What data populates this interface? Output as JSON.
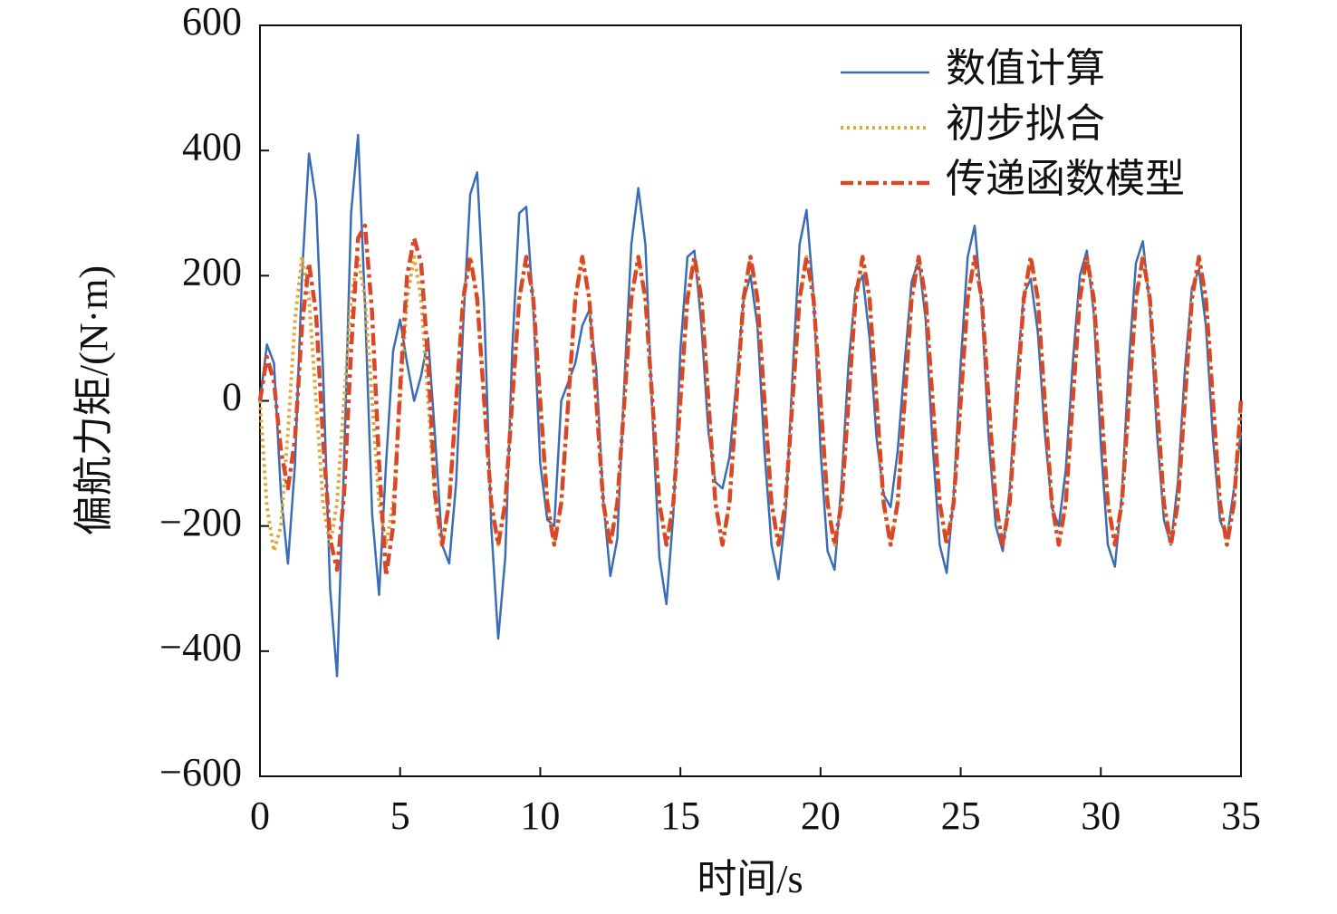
{
  "chart_data": {
    "type": "line",
    "xlabel": "时间/s",
    "ylabel": "偏航力矩/(N·m)",
    "xlim": [
      0,
      35
    ],
    "ylim": [
      -600,
      600
    ],
    "xticks": [
      0,
      5,
      10,
      15,
      20,
      25,
      30,
      35
    ],
    "yticks": [
      {
        "value": -600,
        "label": "−600"
      },
      {
        "value": -400,
        "label": "−400"
      },
      {
        "value": -200,
        "label": "−200"
      },
      0,
      200,
      400,
      600
    ],
    "grid": false,
    "legend": "upper right",
    "x": [
      0,
      0.25,
      0.5,
      0.75,
      1,
      1.25,
      1.5,
      1.75,
      2,
      2.25,
      2.5,
      2.75,
      3,
      3.25,
      3.5,
      3.75,
      4,
      4.25,
      4.5,
      4.75,
      5,
      5.25,
      5.5,
      5.75,
      6,
      6.25,
      6.5,
      6.75,
      7,
      7.25,
      7.5,
      7.75,
      8,
      8.25,
      8.5,
      8.75,
      9,
      9.25,
      9.5,
      9.75,
      10,
      10.25,
      10.5,
      10.75,
      11,
      11.25,
      11.5,
      11.75,
      12,
      12.25,
      12.5,
      12.75,
      13,
      13.25,
      13.5,
      13.75,
      14,
      14.25,
      14.5,
      14.75,
      15,
      15.25,
      15.5,
      15.75,
      16,
      16.25,
      16.5,
      16.75,
      17,
      17.25,
      17.5,
      17.75,
      18,
      18.25,
      18.5,
      18.75,
      19,
      19.25,
      19.5,
      19.75,
      20,
      20.25,
      20.5,
      20.75,
      21,
      21.25,
      21.5,
      21.75,
      22,
      22.25,
      22.5,
      22.75,
      23,
      23.25,
      23.5,
      23.75,
      24,
      24.25,
      24.5,
      24.75,
      25,
      25.25,
      25.5,
      25.75,
      26,
      26.25,
      26.5,
      26.75,
      27,
      27.25,
      27.5,
      27.75,
      28,
      28.25,
      28.5,
      28.75,
      29,
      29.25,
      29.5,
      29.75,
      30,
      30.25,
      30.5,
      30.75,
      31,
      31.25,
      31.5,
      31.75,
      32,
      32.25,
      32.5,
      32.75,
      33,
      33.25,
      33.5,
      33.75,
      34,
      34.25,
      34.5,
      34.75,
      35
    ],
    "series": [
      {
        "name": "数值计算",
        "color": "#3a6db5",
        "line_style": "solid",
        "values": [
          0,
          90,
          60,
          -150,
          -260,
          -100,
          200,
          395,
          320,
          50,
          -300,
          -440,
          -100,
          300,
          425,
          150,
          -180,
          -310,
          -100,
          80,
          130,
          60,
          0,
          40,
          100,
          -60,
          -230,
          -260,
          -130,
          120,
          330,
          365,
          150,
          -200,
          -380,
          -250,
          80,
          300,
          310,
          150,
          -100,
          -190,
          -200,
          0,
          30,
          60,
          120,
          145,
          50,
          -160,
          -280,
          -220,
          30,
          250,
          340,
          250,
          -20,
          -250,
          -325,
          -180,
          80,
          230,
          240,
          120,
          -50,
          -130,
          -140,
          -90,
          30,
          160,
          200,
          120,
          -80,
          -230,
          -285,
          -180,
          40,
          250,
          305,
          170,
          -80,
          -240,
          -270,
          -130,
          60,
          180,
          200,
          100,
          -60,
          -150,
          -170,
          -80,
          60,
          190,
          225,
          130,
          -70,
          -230,
          -275,
          -150,
          60,
          230,
          280,
          150,
          -60,
          -200,
          -240,
          -140,
          40,
          170,
          195,
          110,
          -50,
          -170,
          -200,
          -110,
          60,
          200,
          240,
          140,
          -70,
          -230,
          -265,
          -150,
          60,
          220,
          255,
          150,
          -50,
          -190,
          -230,
          -130,
          50,
          180,
          210,
          120,
          -60,
          -190,
          -220,
          -140,
          -50
        ]
      },
      {
        "name": "初步拟合",
        "color": "#e0a838",
        "line_style": "dotted",
        "values": [
          0,
          -170,
          -240,
          -200,
          -50,
          130,
          230,
          163,
          0,
          -163,
          -230,
          -163,
          0,
          163,
          230,
          163,
          0,
          -163,
          -230,
          -163,
          0,
          163,
          230,
          163,
          0,
          -163,
          -230,
          -163,
          0,
          163,
          230,
          163,
          0,
          -163,
          -230,
          -163,
          0,
          163,
          230,
          163,
          0,
          -163,
          -230,
          -163,
          0,
          163,
          230,
          163,
          0,
          -163,
          -230,
          -163,
          0,
          163,
          230,
          163,
          0,
          -163,
          -230,
          -163,
          0,
          163,
          230,
          163,
          0,
          -163,
          -230,
          -163,
          0,
          163,
          230,
          163,
          0,
          -163,
          -230,
          -163,
          0,
          163,
          230,
          163,
          0,
          -163,
          -230,
          -163,
          0,
          163,
          230,
          163,
          0,
          -163,
          -230,
          -163,
          0,
          163,
          230,
          163,
          0,
          -163,
          -230,
          -163,
          0,
          163,
          230,
          163,
          0,
          -163,
          -230,
          -163,
          0,
          163,
          230,
          163,
          0,
          -163,
          -230,
          -163,
          0,
          163,
          230,
          163,
          0,
          -163,
          -230,
          -163,
          0,
          163,
          230,
          163,
          0,
          -163,
          -230,
          -163,
          0,
          163,
          230,
          163,
          0,
          -163,
          -230,
          -163,
          0
        ]
      },
      {
        "name": "传递函数模型",
        "color": "#d9472b",
        "line_style": "dashdot",
        "values": [
          0,
          70,
          30,
          -80,
          -140,
          -60,
          120,
          220,
          140,
          -60,
          -220,
          -270,
          -150,
          80,
          260,
          280,
          140,
          -100,
          -280,
          -200,
          20,
          200,
          260,
          220,
          60,
          -150,
          -230,
          -163,
          0,
          163,
          230,
          163,
          0,
          -163,
          -230,
          -163,
          0,
          163,
          230,
          163,
          0,
          -163,
          -230,
          -163,
          0,
          163,
          230,
          163,
          0,
          -163,
          -230,
          -163,
          0,
          163,
          230,
          163,
          0,
          -163,
          -230,
          -163,
          0,
          163,
          230,
          163,
          0,
          -163,
          -230,
          -163,
          0,
          163,
          230,
          163,
          0,
          -163,
          -230,
          -163,
          0,
          163,
          230,
          163,
          0,
          -163,
          -230,
          -163,
          0,
          163,
          230,
          163,
          0,
          -163,
          -230,
          -163,
          0,
          163,
          230,
          163,
          0,
          -163,
          -230,
          -163,
          0,
          163,
          230,
          163,
          0,
          -163,
          -230,
          -163,
          0,
          163,
          230,
          163,
          0,
          -163,
          -230,
          -163,
          0,
          163,
          230,
          163,
          0,
          -163,
          -230,
          -163,
          0,
          163,
          230,
          163,
          0,
          -163,
          -230,
          -163,
          0,
          163,
          230,
          163,
          0,
          -163,
          -230,
          -163,
          0
        ]
      }
    ]
  }
}
